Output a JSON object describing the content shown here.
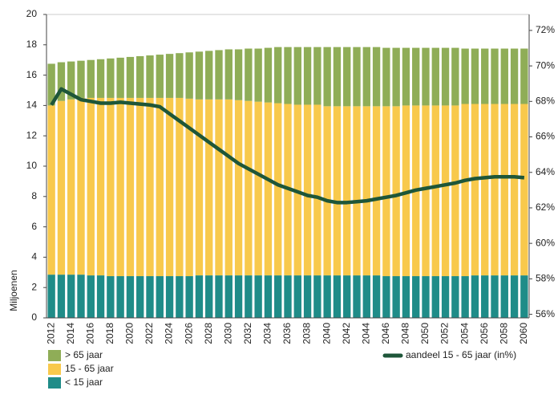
{
  "chart_data": {
    "type": "bar",
    "stacked": true,
    "y_label": "Miljoenen",
    "categories": [
      "2012",
      null,
      "2014",
      null,
      "2016",
      null,
      "2018",
      null,
      "2020",
      null,
      "2022",
      null,
      "2024",
      null,
      "2026",
      null,
      "2028",
      null,
      "2030",
      null,
      "2032",
      null,
      "2034",
      null,
      "2036",
      null,
      "2038",
      null,
      "2040",
      null,
      "2042",
      null,
      "2044",
      null,
      "2046",
      null,
      "2048",
      null,
      "2050",
      null,
      "2052",
      null,
      "2054",
      null,
      "2056",
      null,
      "2058",
      null,
      "2060"
    ],
    "series": [
      {
        "name": "< 15 jaar",
        "color": "#1f8c88",
        "values": [
          2.85,
          2.85,
          2.85,
          2.85,
          2.8,
          2.8,
          2.75,
          2.75,
          2.75,
          2.75,
          2.75,
          2.75,
          2.75,
          2.75,
          2.75,
          2.8,
          2.8,
          2.8,
          2.8,
          2.8,
          2.8,
          2.8,
          2.8,
          2.8,
          2.8,
          2.8,
          2.8,
          2.8,
          2.8,
          2.8,
          2.8,
          2.8,
          2.8,
          2.8,
          2.75,
          2.75,
          2.75,
          2.75,
          2.75,
          2.75,
          2.75,
          2.75,
          2.75,
          2.8,
          2.8,
          2.8,
          2.8,
          2.8,
          2.8
        ]
      },
      {
        "name": "15 - 65 jaar",
        "color": "#f8c94c",
        "values": [
          11.15,
          11.45,
          11.55,
          11.65,
          11.7,
          11.7,
          11.75,
          11.75,
          11.75,
          11.75,
          11.75,
          11.75,
          11.75,
          11.75,
          11.7,
          11.6,
          11.6,
          11.6,
          11.6,
          11.55,
          11.5,
          11.45,
          11.4,
          11.35,
          11.3,
          11.25,
          11.25,
          11.25,
          11.15,
          11.15,
          11.15,
          11.15,
          11.15,
          11.15,
          11.2,
          11.2,
          11.25,
          11.25,
          11.25,
          11.25,
          11.25,
          11.25,
          11.35,
          11.3,
          11.3,
          11.3,
          11.3,
          11.3,
          11.3
        ]
      },
      {
        "name": "> 65 jaar",
        "color": "#8fad57",
        "values": [
          2.75,
          2.55,
          2.5,
          2.45,
          2.5,
          2.55,
          2.6,
          2.65,
          2.7,
          2.75,
          2.8,
          2.85,
          2.9,
          2.95,
          3.05,
          3.15,
          3.2,
          3.25,
          3.3,
          3.35,
          3.45,
          3.5,
          3.6,
          3.7,
          3.75,
          3.8,
          3.8,
          3.8,
          3.9,
          3.9,
          3.9,
          3.9,
          3.9,
          3.9,
          3.85,
          3.85,
          3.8,
          3.8,
          3.8,
          3.8,
          3.8,
          3.8,
          3.65,
          3.65,
          3.65,
          3.65,
          3.65,
          3.65,
          3.65
        ]
      },
      {
        "name": "aandeel 15 - 65 jaar (in%)",
        "type": "line",
        "axis": "y2",
        "color": "#1e5639",
        "values": [
          67.8,
          68.7,
          68.4,
          68.1,
          68.0,
          67.9,
          67.9,
          67.95,
          67.9,
          67.85,
          67.8,
          67.7,
          67.3,
          66.9,
          66.5,
          66.1,
          65.7,
          65.3,
          64.9,
          64.5,
          64.2,
          63.9,
          63.6,
          63.3,
          63.1,
          62.9,
          62.7,
          62.6,
          62.4,
          62.3,
          62.3,
          62.35,
          62.4,
          62.5,
          62.6,
          62.7,
          62.85,
          63.0,
          63.1,
          63.2,
          63.3,
          63.4,
          63.55,
          63.65,
          63.7,
          63.75,
          63.75,
          63.75,
          63.7
        ]
      }
    ],
    "ylim": [
      0,
      20
    ],
    "yticks": [
      0,
      2,
      4,
      6,
      8,
      10,
      12,
      14,
      16,
      18,
      20
    ],
    "y2lim": [
      55.8,
      72.9
    ],
    "y2ticks": [
      {
        "value": 56,
        "label": "56%"
      },
      {
        "value": 58,
        "label": "58%"
      },
      {
        "value": 60,
        "label": "60%"
      },
      {
        "value": 62,
        "label": "62%"
      },
      {
        "value": 64,
        "label": "64%"
      },
      {
        "value": 66,
        "label": "66%"
      },
      {
        "value": 68,
        "label": "68%"
      },
      {
        "value": 70,
        "label": "70%"
      },
      {
        "value": 72,
        "label": "72%"
      }
    ],
    "grid": false
  }
}
